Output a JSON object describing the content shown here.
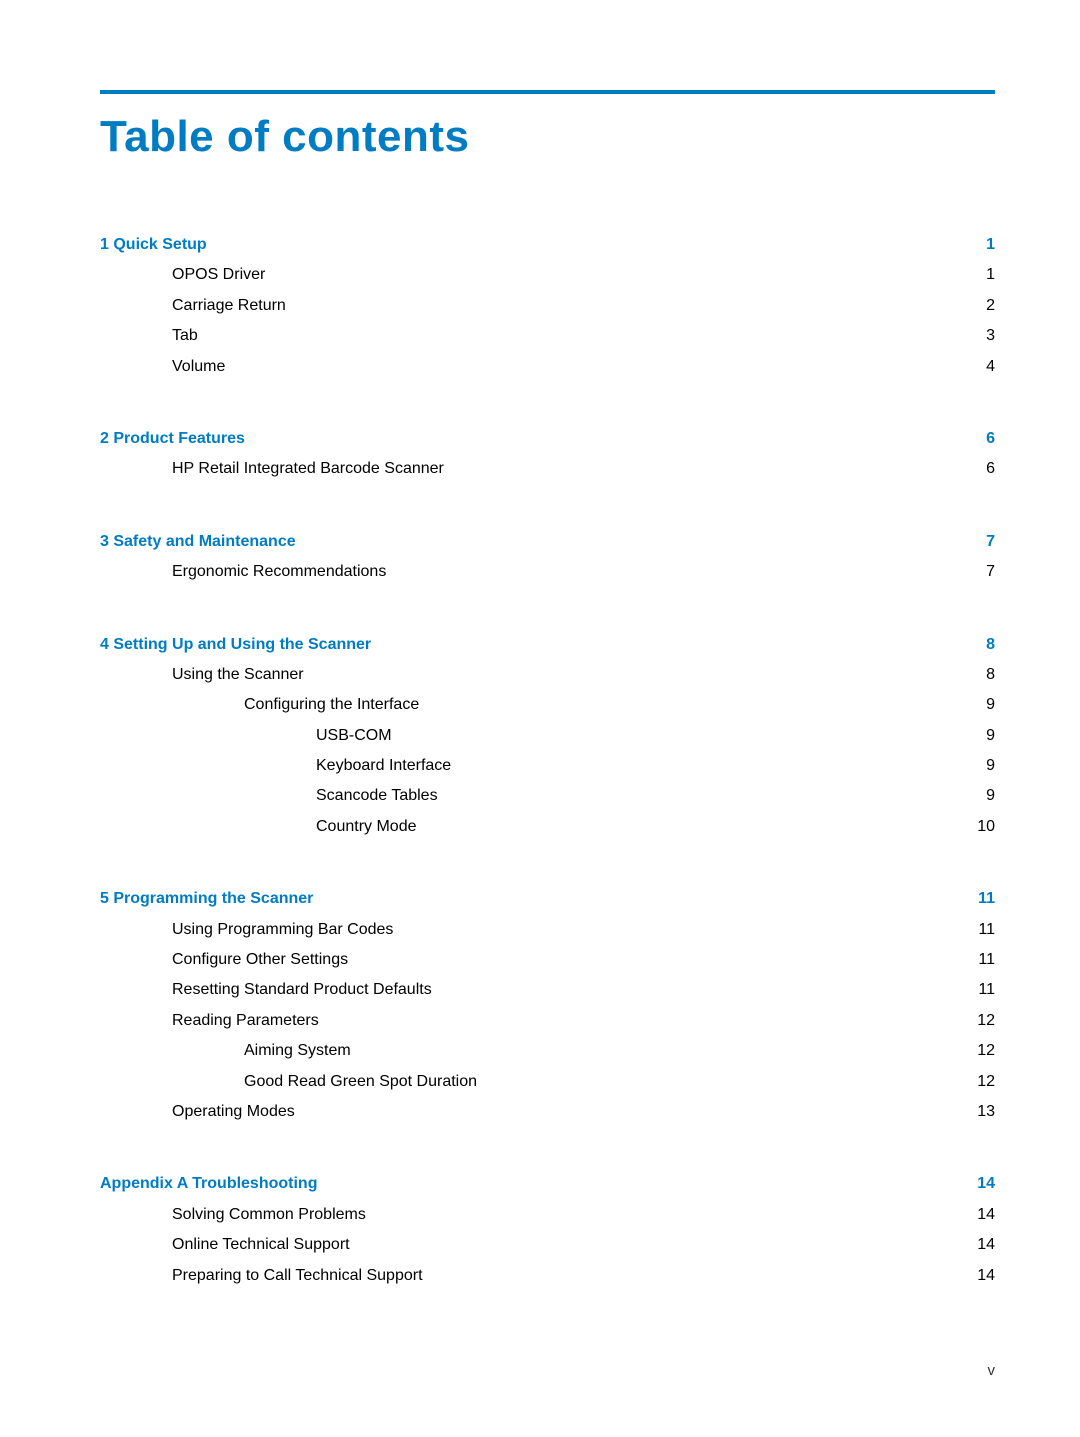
{
  "title": "Table of contents",
  "footer_page": "v",
  "colors": {
    "accent": "#007cc3",
    "text": "#000000",
    "background": "#ffffff"
  },
  "sections": [
    {
      "chapter": {
        "label": "1  Quick Setup",
        "page": "1"
      },
      "entries": [
        {
          "label": "OPOS Driver",
          "page": "1",
          "indent": 1
        },
        {
          "label": "Carriage Return",
          "page": "2",
          "indent": 1
        },
        {
          "label": "Tab",
          "page": "3",
          "indent": 1
        },
        {
          "label": "Volume",
          "page": "4",
          "indent": 1
        }
      ]
    },
    {
      "chapter": {
        "label": "2  Product Features",
        "page": "6"
      },
      "entries": [
        {
          "label": "HP Retail Integrated Barcode Scanner",
          "page": "6",
          "indent": 1
        }
      ]
    },
    {
      "chapter": {
        "label": "3  Safety and Maintenance",
        "page": "7"
      },
      "entries": [
        {
          "label": "Ergonomic Recommendations",
          "page": "7",
          "indent": 1
        }
      ]
    },
    {
      "chapter": {
        "label": "4  Setting Up and Using the Scanner",
        "page": "8"
      },
      "entries": [
        {
          "label": "Using the Scanner",
          "page": "8",
          "indent": 1
        },
        {
          "label": "Configuring the Interface",
          "page": "9",
          "indent": 2
        },
        {
          "label": "USB-COM",
          "page": "9",
          "indent": 3
        },
        {
          "label": "Keyboard Interface",
          "page": "9",
          "indent": 3
        },
        {
          "label": "Scancode Tables",
          "page": "9",
          "indent": 3
        },
        {
          "label": "Country Mode",
          "page": "10",
          "indent": 3
        }
      ]
    },
    {
      "chapter": {
        "label": "5  Programming the Scanner",
        "page": "11"
      },
      "entries": [
        {
          "label": "Using Programming Bar Codes",
          "page": "11",
          "indent": 1
        },
        {
          "label": "Configure Other Settings",
          "page": "11",
          "indent": 1
        },
        {
          "label": "Resetting Standard Product Defaults",
          "page": "11",
          "indent": 1
        },
        {
          "label": "Reading Parameters",
          "page": "12",
          "indent": 1
        },
        {
          "label": "Aiming System",
          "page": "12",
          "indent": 2
        },
        {
          "label": "Good Read Green Spot Duration",
          "page": "12",
          "indent": 2
        },
        {
          "label": "Operating Modes",
          "page": "13",
          "indent": 1
        }
      ]
    },
    {
      "chapter": {
        "label": "Appendix A  Troubleshooting",
        "page": "14"
      },
      "entries": [
        {
          "label": "Solving Common Problems",
          "page": "14",
          "indent": 1
        },
        {
          "label": "Online Technical Support",
          "page": "14",
          "indent": 1
        },
        {
          "label": "Preparing to Call Technical Support",
          "page": "14",
          "indent": 1
        }
      ]
    }
  ]
}
